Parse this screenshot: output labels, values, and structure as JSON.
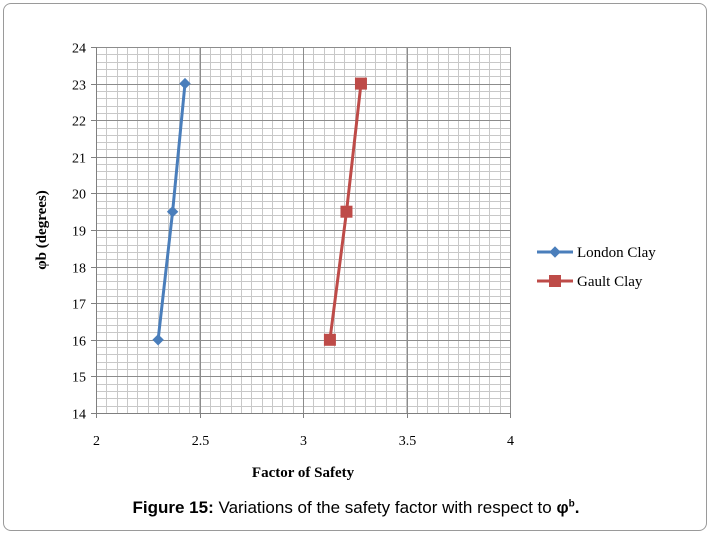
{
  "chart_data": {
    "type": "line",
    "xlabel": "Factor of Safety",
    "ylabel": "φb (degrees)",
    "xlim": [
      2,
      4
    ],
    "ylim": [
      14,
      24
    ],
    "x_ticks": [
      "2",
      "2.5",
      "3",
      "3.5",
      "4"
    ],
    "y_ticks": [
      "14",
      "15",
      "16",
      "17",
      "18",
      "19",
      "20",
      "21",
      "22",
      "23",
      "24"
    ],
    "grid": true,
    "legend_position": "right",
    "series": [
      {
        "name": "London Clay",
        "color": "#4a7ebb",
        "marker": "diamond",
        "points": [
          {
            "x": 2.3,
            "y": 16
          },
          {
            "x": 2.37,
            "y": 19.5
          },
          {
            "x": 2.43,
            "y": 23
          }
        ]
      },
      {
        "name": "Gault Clay",
        "color": "#be4b48",
        "marker": "square",
        "points": [
          {
            "x": 3.13,
            "y": 16
          },
          {
            "x": 3.21,
            "y": 19.5
          },
          {
            "x": 3.28,
            "y": 23
          }
        ]
      }
    ]
  },
  "caption": {
    "label": "Figure 15:",
    "text": " Variations of the safety factor with respect to ",
    "symbol": "φ",
    "superscript": "b",
    "end": "."
  }
}
